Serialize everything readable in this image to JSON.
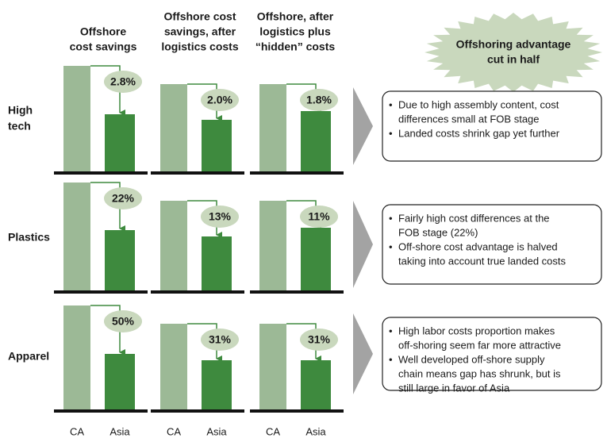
{
  "columns": [
    {
      "lines": [
        "Offshore",
        "cost savings"
      ]
    },
    {
      "lines": [
        "Offshore cost",
        "savings, after",
        "logistics costs"
      ]
    },
    {
      "lines": [
        "Offshore, after",
        "logistics plus",
        "“hidden” costs"
      ]
    }
  ],
  "callout": {
    "lines": [
      "Offshoring advantage",
      "cut in half"
    ]
  },
  "rows": [
    {
      "label_lines": [
        "High",
        "tech"
      ],
      "savings": [
        "2.8%",
        "2.0%",
        "1.8%"
      ],
      "bullets": [
        [
          "Due to high assembly content, cost",
          "differences small at FOB stage"
        ],
        [
          "Landed costs shrink gap yet further"
        ]
      ]
    },
    {
      "label_lines": [
        "Plastics"
      ],
      "savings": [
        "22%",
        "13%",
        "11%"
      ],
      "bullets": [
        [
          "Fairly high cost differences at the",
          "FOB stage (22%)"
        ],
        [
          "Off-shore cost advantage is halved",
          "taking into account true landed costs"
        ]
      ]
    },
    {
      "label_lines": [
        "Apparel"
      ],
      "savings": [
        "50%",
        "31%",
        "31%"
      ],
      "bullets": [
        [
          "High labor costs proportion makes",
          "off-shoring seem far more attractive"
        ],
        [
          "Well developed off-shore supply",
          "chain means gap has shrunk, but is",
          "still large in favor of Asia"
        ]
      ]
    }
  ],
  "bar_labels": [
    "CA",
    "Asia"
  ]
}
